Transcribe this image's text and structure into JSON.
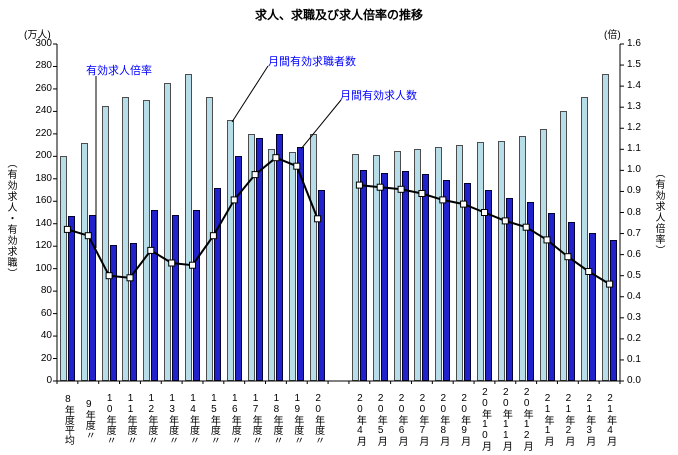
{
  "title": "求人、求職及び求人倍率の推移",
  "axes": {
    "left_unit": "(万人)",
    "right_unit": "(倍)",
    "left_axis_title": "（有効求人・有効求職）",
    "right_axis_title": "（有効求人倍率）"
  },
  "annotations": {
    "ratio_label": "有効求人倍率",
    "seekers_label": "月間有効求職者数",
    "offers_label": "月間有効求人数"
  },
  "colors": {
    "seekers_bar": "#b7dee8",
    "offers_bar": "#2222cc",
    "ratio_line": "#000000",
    "marker_fill": "#ffffff",
    "annotation_text": "#0000ff"
  },
  "chart_data": {
    "type": "bar",
    "subtype": "grouped-bars-with-line-on-secondary-axis",
    "title": "求人、求職及び求人倍率の推移",
    "grid": false,
    "legend_position": "none (inline blue annotations)",
    "categories": [
      "8年度平均",
      "9年度〃",
      "10年度〃",
      "11年度〃",
      "12年度〃",
      "13年度〃",
      "14年度〃",
      "15年度〃",
      "16年度〃",
      "17年度〃",
      "18年度〃",
      "19年度〃",
      "20年度〃",
      "20年4月",
      "20年5月",
      "20年6月",
      "20年7月",
      "20年8月",
      "20年9月",
      "20年10月",
      "20年11月",
      "20年12月",
      "21年1月",
      "21年2月",
      "21年3月",
      "21年4月"
    ],
    "group_break_after_index": 12,
    "series": [
      {
        "name": "月間有効求職者数",
        "type": "bar",
        "axis": "left",
        "color": "#b7dee8",
        "values": [
          200,
          212,
          245,
          253,
          250,
          265,
          273,
          253,
          232,
          220,
          207,
          204,
          220,
          202,
          201,
          205,
          207,
          208,
          210,
          213,
          214,
          218,
          224,
          240,
          253,
          273
        ]
      },
      {
        "name": "月間有効求人数",
        "type": "bar",
        "axis": "left",
        "color": "#2222cc",
        "values": [
          147,
          148,
          121,
          123,
          152,
          148,
          152,
          172,
          200,
          216,
          220,
          208,
          170,
          188,
          185,
          187,
          184,
          179,
          176,
          170,
          163,
          159,
          150,
          142,
          132,
          126
        ]
      },
      {
        "name": "有効求人倍率",
        "type": "line",
        "axis": "right",
        "color": "#000000",
        "marker": "white-square",
        "values": [
          0.72,
          0.69,
          0.5,
          0.49,
          0.62,
          0.56,
          0.55,
          0.69,
          0.86,
          0.98,
          1.06,
          1.02,
          0.77,
          0.93,
          0.92,
          0.91,
          0.89,
          0.86,
          0.84,
          0.8,
          0.76,
          0.73,
          0.67,
          0.59,
          0.52,
          0.46
        ]
      }
    ],
    "left_axis": {
      "min": 0,
      "max": 300,
      "step": 20,
      "unit": "万人",
      "ticks": [
        "300",
        "280",
        "260",
        "240",
        "220",
        "200",
        "180",
        "160",
        "140",
        "120",
        "100",
        "80",
        "60",
        "40",
        "20",
        "0"
      ]
    },
    "right_axis": {
      "min": 0,
      "max": 1.6,
      "step": 0.1,
      "unit": "倍",
      "ticks": [
        "1.6",
        "1.5",
        "1.4",
        "1.3",
        "1.2",
        "1.1",
        "1.0",
        "0.9",
        "0.8",
        "0.7",
        "0.6",
        "0.5",
        "0.4",
        "0.3",
        "0.2",
        "0.1",
        "0.0"
      ]
    }
  }
}
